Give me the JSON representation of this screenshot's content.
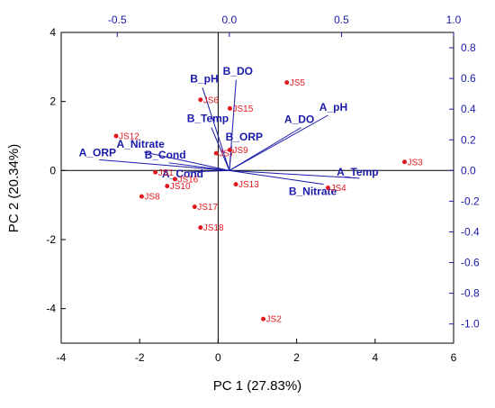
{
  "chart_data": {
    "type": "scatter",
    "title": "",
    "xlabel": "PC 1 (27.83%)",
    "ylabel": "PC 2 (20.34%)",
    "xlim": [
      -4,
      6
    ],
    "ylim": [
      -5,
      4
    ],
    "x_ticks": [
      "-4",
      "-2",
      "0",
      "2",
      "4",
      "6"
    ],
    "y_ticks": [
      "-4",
      "-2",
      "0",
      "2",
      "4"
    ],
    "x2lim": [
      -0.75,
      1.0
    ],
    "y2lim": [
      -1.125,
      0.9
    ],
    "x2_ticks": [
      "-0.5",
      "0.0",
      "0.5",
      "1.0"
    ],
    "y2_ticks": [
      "-1.0",
      "-0.8",
      "-0.6",
      "-0.4",
      "-0.2",
      "0.0",
      "0.2",
      "0.4",
      "0.6",
      "0.8"
    ],
    "grid": false,
    "colors": {
      "points": "#e0191f",
      "loadings": "#1a1aa8",
      "axes": "#000000"
    },
    "series": [
      {
        "points": [
          {
            "label": "JS2",
            "x": 1.15,
            "y": -4.3
          },
          {
            "label": "JS3",
            "x": 4.75,
            "y": 0.25
          },
          {
            "label": "JS4",
            "x": 2.8,
            "y": -0.5
          },
          {
            "label": "JS5",
            "x": 1.75,
            "y": 2.55
          },
          {
            "label": "JS6",
            "x": -0.45,
            "y": 2.05
          },
          {
            "label": "JS7",
            "x": -0.05,
            "y": 0.5
          },
          {
            "label": "JS8",
            "x": -1.95,
            "y": -0.75
          },
          {
            "label": "JS9",
            "x": 0.3,
            "y": 0.6
          },
          {
            "label": "JS10",
            "x": -1.3,
            "y": -0.45
          },
          {
            "label": "JS12",
            "x": -2.6,
            "y": 1.0
          },
          {
            "label": "JS13",
            "x": 0.45,
            "y": -0.4
          },
          {
            "label": "JS15",
            "x": 0.3,
            "y": 1.8
          },
          {
            "label": "JS16",
            "x": -1.1,
            "y": -0.25
          },
          {
            "label": "JS17",
            "x": -0.6,
            "y": -1.05
          },
          {
            "label": "JS18",
            "x": -0.45,
            "y": -1.65
          },
          {
            "label": "JS1",
            "x": -1.6,
            "y": -0.05
          }
        ]
      },
      {
        "loadings": [
          {
            "label": "B_pH",
            "x": -0.12,
            "y": 0.54
          },
          {
            "label": "B_DO",
            "x": 0.03,
            "y": 0.59
          },
          {
            "label": "B_Temp",
            "x": -0.08,
            "y": 0.28
          },
          {
            "label": "B_ORP",
            "x": 0.01,
            "y": 0.16
          },
          {
            "label": "A_DO",
            "x": 0.32,
            "y": 0.28
          },
          {
            "label": "A_pH",
            "x": 0.44,
            "y": 0.36
          },
          {
            "label": "A_Nitrate",
            "x": -0.38,
            "y": 0.12
          },
          {
            "label": "A_ORP",
            "x": -0.58,
            "y": 0.07
          },
          {
            "label": "B_Cond",
            "x": -0.27,
            "y": 0.05
          },
          {
            "label": "A_Cond",
            "x": -0.2,
            "y": -0.01
          },
          {
            "label": "A_Temp",
            "x": 0.58,
            "y": -0.05
          },
          {
            "label": "B_Nitrate",
            "x": 0.42,
            "y": -0.09
          }
        ]
      }
    ]
  }
}
